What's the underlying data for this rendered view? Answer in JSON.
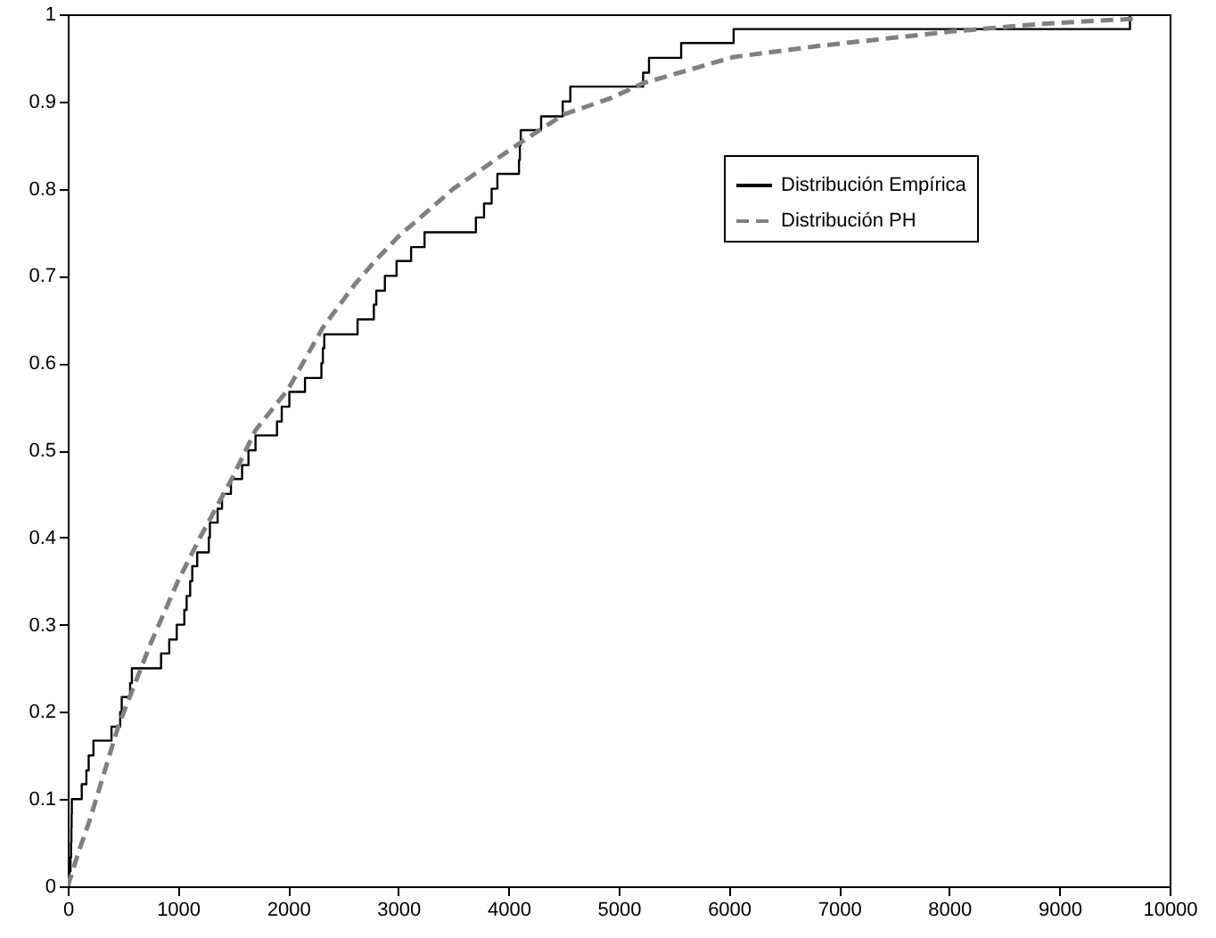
{
  "chart_data": {
    "type": "line",
    "xlim": [
      0,
      10000
    ],
    "ylim": [
      0,
      1
    ],
    "xticks": [
      0,
      1000,
      2000,
      3000,
      4000,
      5000,
      6000,
      7000,
      8000,
      9000,
      10000
    ],
    "yticks": [
      0,
      0.1,
      0.2,
      0.3,
      0.4,
      0.5,
      0.6,
      0.7,
      0.8,
      0.9,
      1
    ],
    "grid": false,
    "legend": "top right",
    "series": [
      {
        "name": "Distribución Empírica",
        "type": "step",
        "color": "#000000",
        "line_style": "solid",
        "x": [
          0,
          15,
          25,
          30,
          33,
          35,
          37,
          127,
          169,
          190,
          233,
          397,
          476,
          490,
          566,
          582,
          847,
          921,
          989,
          1058,
          1079,
          1111,
          1130,
          1175,
          1280,
          1290,
          1360,
          1400,
          1481,
          1582,
          1640,
          1704,
          1899,
          1942,
          2011,
          2153,
          2302,
          2315,
          2328,
          2630,
          2778,
          2800,
          2878,
          2984,
          3116,
          3238,
          3704,
          3778,
          3847,
          3899,
          4095,
          4103,
          4111,
          4296,
          4492,
          4561,
          5222,
          5275,
          5567,
          6043,
          9640
        ],
        "values": [
          0,
          0.017,
          0.033,
          0.05,
          0.067,
          0.083,
          0.1,
          0.117,
          0.133,
          0.15,
          0.167,
          0.183,
          0.2,
          0.217,
          0.233,
          0.25,
          0.267,
          0.283,
          0.3,
          0.317,
          0.333,
          0.35,
          0.367,
          0.383,
          0.4,
          0.417,
          0.433,
          0.45,
          0.467,
          0.483,
          0.5,
          0.517,
          0.533,
          0.55,
          0.567,
          0.583,
          0.6,
          0.617,
          0.633,
          0.65,
          0.667,
          0.683,
          0.7,
          0.717,
          0.733,
          0.75,
          0.767,
          0.783,
          0.8,
          0.817,
          0.833,
          0.85,
          0.867,
          0.883,
          0.9,
          0.917,
          0.933,
          0.95,
          0.967,
          0.983,
          1.0
        ]
      },
      {
        "name": "Distribución PH",
        "type": "line",
        "color": "#808080",
        "line_style": "dashed",
        "x": [
          0,
          100,
          195,
          460,
          751,
          1000,
          1201,
          1500,
          1704,
          2000,
          2312,
          2603,
          2788,
          3000,
          3500,
          4111,
          4500,
          4932,
          5222,
          6043,
          6836,
          8000,
          8841,
          9700
        ],
        "values": [
          0,
          0.04,
          0.074,
          0.184,
          0.278,
          0.35,
          0.4,
          0.47,
          0.523,
          0.57,
          0.64,
          0.69,
          0.717,
          0.745,
          0.8,
          0.853,
          0.885,
          0.904,
          0.921,
          0.951,
          0.964,
          0.98,
          0.989,
          0.995
        ]
      }
    ]
  }
}
